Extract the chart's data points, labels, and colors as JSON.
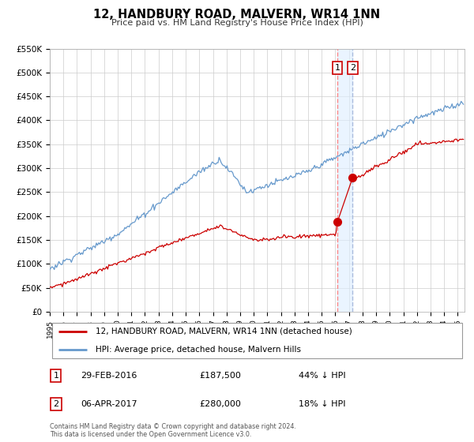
{
  "title": "12, HANDBURY ROAD, MALVERN, WR14 1NN",
  "subtitle": "Price paid vs. HM Land Registry's House Price Index (HPI)",
  "legend_label_red": "12, HANDBURY ROAD, MALVERN, WR14 1NN (detached house)",
  "legend_label_blue": "HPI: Average price, detached house, Malvern Hills",
  "annotation1_label": "1",
  "annotation1_date": "29-FEB-2016",
  "annotation1_price": "£187,500",
  "annotation1_hpi": "44% ↓ HPI",
  "annotation2_label": "2",
  "annotation2_date": "06-APR-2017",
  "annotation2_price": "£280,000",
  "annotation2_hpi": "18% ↓ HPI",
  "footnote": "Contains HM Land Registry data © Crown copyright and database right 2024.\nThis data is licensed under the Open Government Licence v3.0.",
  "vline1_year": 2016.15,
  "vline2_year": 2017.27,
  "sale1_year": 2016.15,
  "sale1_price": 187500,
  "sale2_year": 2017.27,
  "sale2_price": 280000,
  "ylim": [
    0,
    550000
  ],
  "xlim_start": 1995.0,
  "xlim_end": 2025.5,
  "red_color": "#cc0000",
  "blue_color": "#6699cc",
  "vline1_color": "#ff8888",
  "vline2_color": "#aabbdd",
  "shade_color": "#ddeeff",
  "bg_color": "#ffffff",
  "grid_color": "#cccccc",
  "yticks": [
    0,
    50000,
    100000,
    150000,
    200000,
    250000,
    300000,
    350000,
    400000,
    450000,
    500000,
    550000
  ],
  "ytick_labels": [
    "£0",
    "£50K",
    "£100K",
    "£150K",
    "£200K",
    "£250K",
    "£300K",
    "£350K",
    "£400K",
    "£450K",
    "£500K",
    "£550K"
  ],
  "xticks": [
    1995,
    1996,
    1997,
    1998,
    1999,
    2000,
    2001,
    2002,
    2003,
    2004,
    2005,
    2006,
    2007,
    2008,
    2009,
    2010,
    2011,
    2012,
    2013,
    2014,
    2015,
    2016,
    2017,
    2018,
    2019,
    2020,
    2021,
    2022,
    2023,
    2024,
    2025
  ]
}
